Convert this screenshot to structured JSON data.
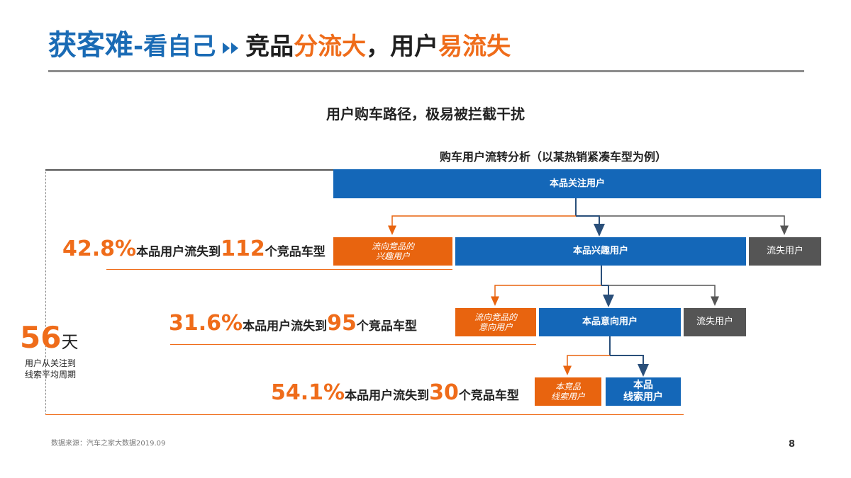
{
  "title": {
    "part1": "获客难",
    "part2": "-看自己",
    "part3": "竞品",
    "part4": "分流大",
    "part5": "，用户",
    "part6": "易流失"
  },
  "subtitle": "用户购车路径，极易被拦截干扰",
  "diagram_title": "购车用户流转分析（以某热销紧凑车型为例）",
  "boxes": {
    "attention": "本品关注用户",
    "interest": "本品兴趣用户",
    "lost1": "流失用户",
    "flow_competitor_interest": "流向竞品的\n兴趣用户",
    "intent": "本品意向用户",
    "lost2": "流失用户",
    "flow_competitor_intent": "流向竞品的\n意向用户",
    "competitor_lead": "本竞品\n线索用户",
    "own_lead": "本品\n线索用户"
  },
  "stats": [
    {
      "percent": "42.8%",
      "text_before": "本品用户流失到",
      "count": "112",
      "text_after": " 个竞品车型"
    },
    {
      "percent": "31.6%",
      "text_before": "本品用户流失到",
      "count": "95",
      "text_after": " 个竞品车型"
    },
    {
      "percent": "54.1%",
      "text_before": "本品用户流失到",
      "count": "30",
      "text_after": " 个竞品车型"
    }
  ],
  "days": {
    "number": "56",
    "unit": "天",
    "caption": "用户从关注到\n线索平均周期"
  },
  "source": "数据来源：汽车之家大数据2019.09",
  "page_number": "8",
  "colors": {
    "brand_blue": "#1467b8",
    "accent_orange": "#ef6c1a",
    "lost_gray": "#555555"
  }
}
